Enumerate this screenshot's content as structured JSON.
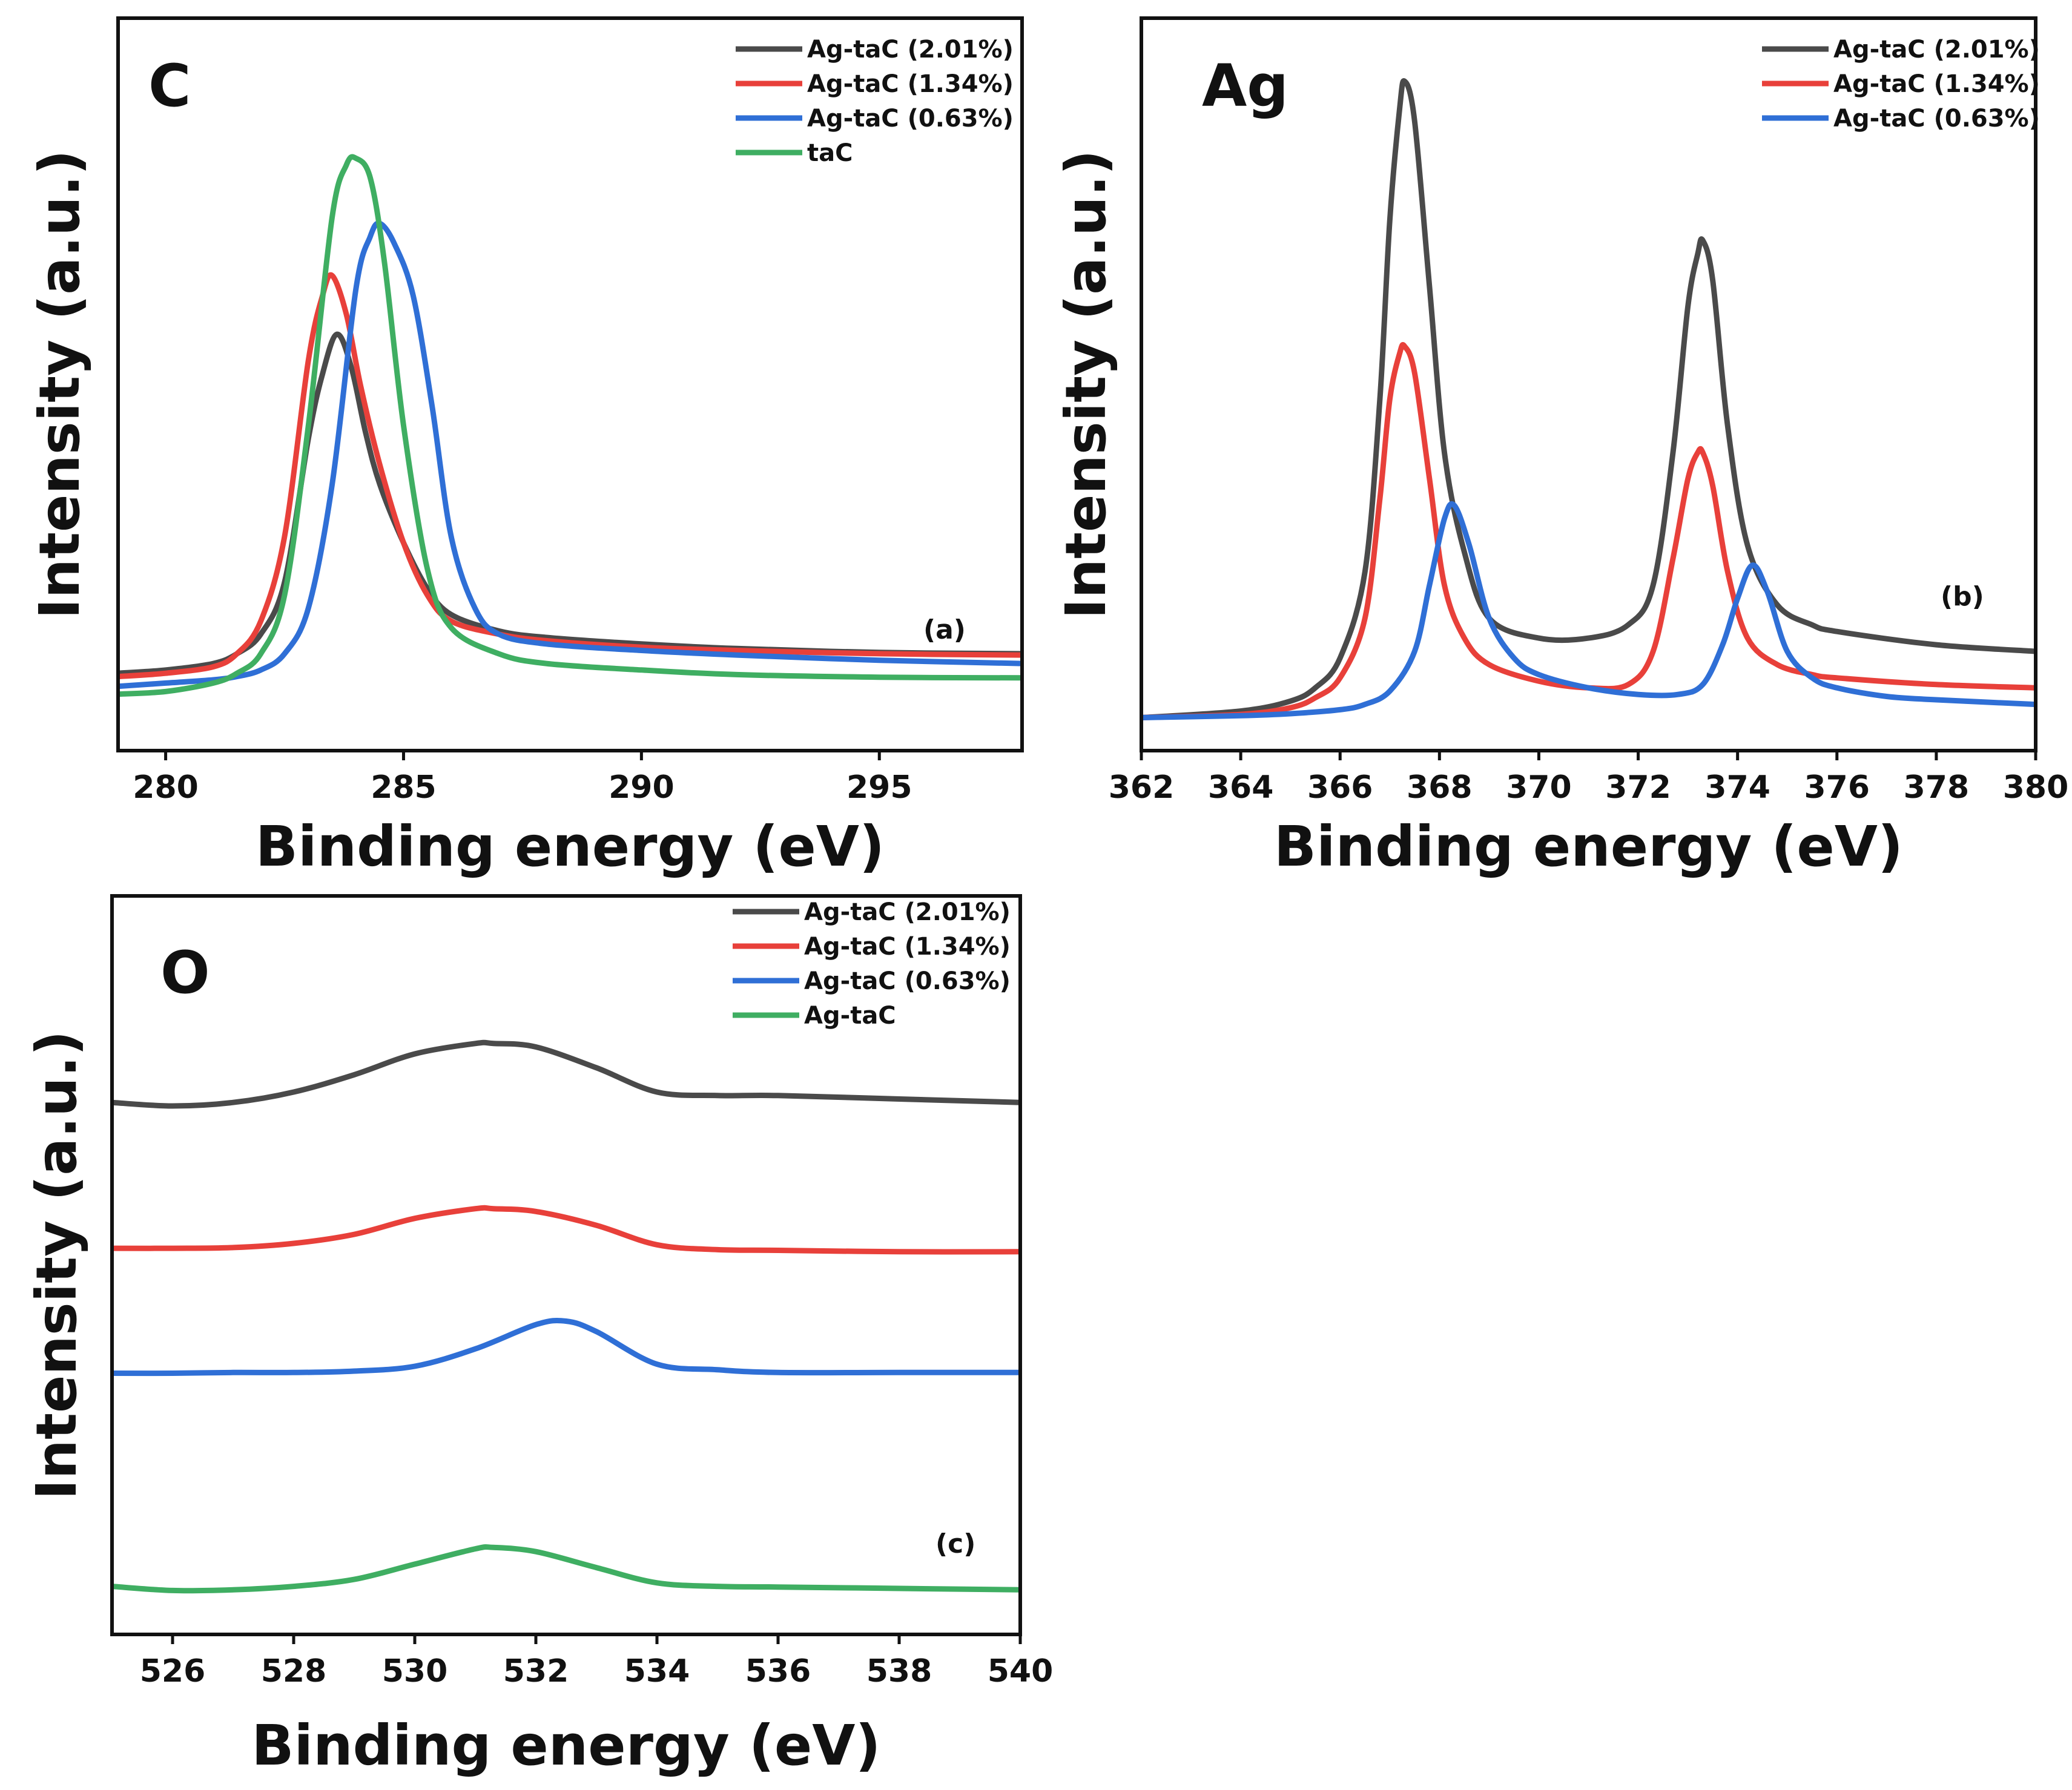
{
  "figure": {
    "colors": {
      "Ag-taC (2.01%)": "#4a4a4a",
      "Ag-taC (1.34%)": "#e8403a",
      "Ag-taC (0.63%)": "#2f6fd6",
      "taC": "#3fae62",
      "Ag-taC": "#3fae62"
    }
  },
  "chart_data": [
    {
      "type": "line",
      "panel": "a",
      "title": "C",
      "tag": "(a)",
      "xlabel": "Binding energy (eV)",
      "ylabel": "Intensity (a.u.)",
      "xlim": [
        279,
        298
      ],
      "ylim": [
        0,
        100
      ],
      "xticks": [
        280,
        285,
        290,
        295
      ],
      "legend": [
        "Ag-taC (2.01%)",
        "Ag-taC (1.34%)",
        "Ag-taC (0.63%)",
        "taC"
      ],
      "series": [
        {
          "name": "Ag-taC (2.01%)",
          "x": [
            279,
            280,
            281,
            281.5,
            282,
            282.5,
            283,
            283.3,
            283.6,
            283.9,
            284.2,
            284.5,
            285,
            285.5,
            286,
            287,
            288,
            290,
            292,
            295,
            298
          ],
          "y": [
            4,
            4.5,
            5.5,
            7,
            10,
            18,
            40,
            50,
            56,
            51,
            41,
            33,
            24,
            17,
            13,
            10.5,
            9.5,
            8.5,
            7.8,
            7.2,
            7
          ]
        },
        {
          "name": "Ag-taC (1.34%)",
          "x": [
            279,
            280,
            281,
            281.5,
            282,
            282.5,
            283,
            283.3,
            283.5,
            283.8,
            284.1,
            284.5,
            285,
            285.5,
            286,
            287,
            288,
            290,
            292,
            295,
            298
          ],
          "y": [
            3.5,
            4,
            5,
            7,
            12,
            25,
            52,
            62,
            65,
            59,
            48,
            36,
            24,
            16,
            12,
            10,
            9,
            8,
            7.5,
            7,
            6.8
          ]
        },
        {
          "name": "Ag-taC (0.63%)",
          "x": [
            279,
            280,
            281,
            281.5,
            282,
            282.5,
            283,
            283.5,
            284,
            284.3,
            284.5,
            284.8,
            285.2,
            285.6,
            286,
            286.5,
            287,
            288,
            290,
            292,
            295,
            298
          ],
          "y": [
            2,
            2.5,
            3,
            3.5,
            4.5,
            7,
            14,
            33,
            63,
            71,
            73,
            70,
            62,
            45,
            25,
            14,
            10,
            8.5,
            7.5,
            6.8,
            6,
            5.5
          ]
        },
        {
          "name": "taC",
          "x": [
            279,
            280,
            281,
            281.5,
            282,
            282.5,
            283,
            283.5,
            283.8,
            284,
            284.3,
            284.6,
            285,
            285.5,
            286,
            287,
            288,
            290,
            292,
            295,
            298
          ],
          "y": [
            0.8,
            1.2,
            2.5,
            4,
            7,
            16,
            42,
            74,
            82,
            83,
            80,
            67,
            42,
            20,
            11,
            7,
            5.5,
            4.5,
            3.8,
            3.4,
            3.3
          ]
        }
      ]
    },
    {
      "type": "line",
      "panel": "b",
      "title": "Ag",
      "tag": "(b)",
      "xlabel": "Binding energy (eV)",
      "ylabel": "Intensity (a.u.)",
      "xlim": [
        362,
        380
      ],
      "ylim": [
        0,
        100
      ],
      "xticks": [
        362,
        364,
        366,
        368,
        370,
        372,
        374,
        376,
        378,
        380
      ],
      "legend": [
        "Ag-taC (2.01%)",
        "Ag-taC (1.34%)",
        "Ag-taC (0.63%)"
      ],
      "series": [
        {
          "name": "Ag-taC (2.01%)",
          "x": [
            362,
            364,
            365,
            365.5,
            366,
            366.5,
            366.8,
            367,
            367.2,
            367.3,
            367.5,
            367.8,
            368.1,
            368.5,
            369,
            370,
            371,
            371.8,
            372.3,
            372.7,
            373,
            373.2,
            373.3,
            373.5,
            373.8,
            374.2,
            374.8,
            375.5,
            376,
            378,
            380
          ],
          "y": [
            0,
            1,
            2.5,
            4.5,
            9,
            22,
            48,
            75,
            92,
            96,
            90,
            65,
            40,
            25,
            15,
            12,
            12,
            14,
            20,
            40,
            62,
            70,
            72,
            66,
            44,
            26,
            17,
            14,
            13,
            11,
            10
          ]
        },
        {
          "name": "Ag-taC (1.34%)",
          "x": [
            362,
            364,
            365,
            365.5,
            366,
            366.5,
            366.8,
            367,
            367.2,
            367.3,
            367.5,
            367.8,
            368.1,
            368.5,
            369,
            370,
            371,
            371.8,
            372.3,
            372.7,
            373,
            373.2,
            373.3,
            373.5,
            373.8,
            374.2,
            374.8,
            375.5,
            376,
            378,
            380
          ],
          "y": [
            0,
            0.5,
            1.5,
            3,
            6,
            15,
            33,
            48,
            55,
            56,
            52,
            36,
            20,
            12,
            8,
            5.5,
            4.5,
            5,
            10,
            24,
            36,
            40,
            40,
            35,
            22,
            12,
            8,
            6.5,
            6,
            5,
            4.5
          ]
        },
        {
          "name": "Ag-taC (0.63%)",
          "x": [
            362,
            364,
            365,
            366,
            366.5,
            367,
            367.5,
            367.8,
            368.1,
            368.3,
            368.6,
            369,
            369.5,
            370,
            371,
            372,
            372.8,
            373.3,
            373.7,
            374,
            374.3,
            374.6,
            375,
            375.5,
            376,
            377,
            378,
            380
          ],
          "y": [
            0,
            0.3,
            0.6,
            1.2,
            2,
            4,
            10,
            20,
            30,
            32,
            26,
            15,
            9,
            6.5,
            4.5,
            3.5,
            3.5,
            5,
            11,
            18,
            23,
            19,
            10,
            6,
            4.5,
            3.2,
            2.7,
            2
          ]
        }
      ]
    },
    {
      "type": "line",
      "panel": "c",
      "title": "O",
      "tag": "(c)",
      "xlabel": "Binding energy (eV)",
      "ylabel": "Intensity (a.u.)",
      "xlim": [
        525,
        540
      ],
      "ylim": [
        0,
        100
      ],
      "xticks": [
        526,
        528,
        530,
        532,
        534,
        536,
        538,
        540
      ],
      "legend": [
        "Ag-taC (2.01%)",
        "Ag-taC (1.34%)",
        "Ag-taC (0.63%)",
        "Ag-taC"
      ],
      "series": [
        {
          "name": "Ag-taC (2.01%)",
          "x": [
            525,
            526,
            527,
            528,
            529,
            530,
            531,
            531.3,
            532,
            533,
            534,
            535,
            536,
            538,
            540
          ],
          "y": [
            74.5,
            74,
            74.5,
            76,
            78.5,
            81.5,
            83,
            83,
            82.5,
            79.5,
            76,
            75.5,
            75.5,
            75,
            74.5
          ]
        },
        {
          "name": "Ag-taC (1.34%)",
          "x": [
            525,
            526,
            527,
            528,
            529,
            530,
            531,
            531.3,
            532,
            533,
            534,
            535,
            536,
            538,
            540
          ],
          "y": [
            53.5,
            53.5,
            53.6,
            54.2,
            55.5,
            57.8,
            59.2,
            59.2,
            58.8,
            56.8,
            54,
            53.3,
            53.2,
            53,
            53
          ]
        },
        {
          "name": "Ag-taC (0.63%)",
          "x": [
            525,
            526,
            527,
            528,
            529,
            530,
            531,
            532,
            532.5,
            533,
            534,
            535,
            536,
            538,
            540
          ],
          "y": [
            35.5,
            35.5,
            35.6,
            35.6,
            35.8,
            36.5,
            39,
            42.5,
            43,
            41.5,
            36.8,
            36,
            35.6,
            35.6,
            35.6
          ]
        },
        {
          "name": "Ag-taC",
          "x": [
            525,
            526,
            527,
            528,
            529,
            530,
            531,
            531.3,
            532,
            533,
            534,
            535,
            536,
            538,
            540
          ],
          "y": [
            4.8,
            4.2,
            4.3,
            4.8,
            5.8,
            8,
            10.2,
            10.4,
            9.8,
            7.5,
            5.3,
            4.8,
            4.7,
            4.5,
            4.3
          ]
        }
      ]
    }
  ]
}
